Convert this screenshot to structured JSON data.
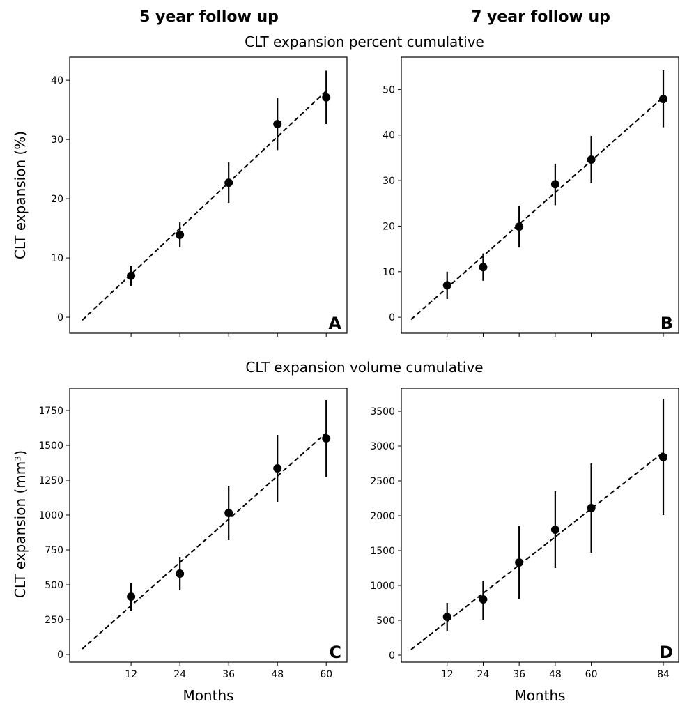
{
  "column_titles": [
    "5 year follow up",
    "7 year follow up"
  ],
  "row_titles": [
    "CLT expansion percent cumulative",
    "CLT expansion volume cumulative"
  ],
  "ylabels": [
    "CLT expansion (%)",
    "CLT expansion (mm³)"
  ],
  "xlabel": "Months",
  "chart_data": [
    {
      "panel": "A",
      "type": "scatter",
      "xlim": [
        -3.1,
        65.1
      ],
      "ylim": [
        -2.7,
        43.9
      ],
      "xticks": [
        12,
        24,
        36,
        48,
        60
      ],
      "yticks": [
        0,
        10,
        20,
        30,
        40
      ],
      "show_xticklabels": false,
      "x": [
        12,
        24,
        36,
        48,
        60
      ],
      "y": [
        7.0,
        13.9,
        22.7,
        32.6,
        37.1
      ],
      "err_low": [
        5.3,
        11.8,
        19.3,
        28.2,
        32.6
      ],
      "err_high": [
        8.7,
        16.0,
        26.2,
        37.0,
        41.6
      ],
      "fit": [
        [
          0,
          -0.5
        ],
        [
          60,
          38.2
        ]
      ]
    },
    {
      "panel": "B",
      "type": "scatter",
      "xlim": [
        -3.25,
        89.1
      ],
      "ylim": [
        -3.5,
        57.1
      ],
      "xticks": [
        12,
        24,
        36,
        48,
        60,
        84
      ],
      "yticks": [
        0,
        10,
        20,
        30,
        40,
        50
      ],
      "show_xticklabels": false,
      "x": [
        12,
        24,
        36,
        48,
        60,
        84
      ],
      "y": [
        7.0,
        11.0,
        19.9,
        29.2,
        34.6,
        47.9
      ],
      "err_low": [
        4.0,
        8.0,
        15.3,
        24.6,
        29.4,
        41.7
      ],
      "err_high": [
        10.0,
        14.0,
        24.5,
        33.7,
        39.8,
        54.2
      ],
      "fit": [
        [
          0,
          -0.5
        ],
        [
          84,
          48.3
        ]
      ]
    },
    {
      "panel": "C",
      "type": "scatter",
      "xlim": [
        -3.1,
        65.1
      ],
      "ylim": [
        -55,
        1910
      ],
      "xticks": [
        12,
        24,
        36,
        48,
        60
      ],
      "yticks": [
        0,
        250,
        500,
        750,
        1000,
        1250,
        1500,
        1750
      ],
      "show_xticklabels": true,
      "x": [
        12,
        24,
        36,
        48,
        60
      ],
      "y": [
        415,
        580,
        1015,
        1335,
        1550
      ],
      "err_low": [
        315,
        460,
        820,
        1095,
        1275
      ],
      "err_high": [
        515,
        700,
        1210,
        1575,
        1825
      ],
      "fit": [
        [
          0,
          40
        ],
        [
          60,
          1590
        ]
      ]
    },
    {
      "panel": "D",
      "type": "scatter",
      "xlim": [
        -3.25,
        89.1
      ],
      "ylim": [
        -100,
        3830
      ],
      "xticks": [
        12,
        24,
        36,
        48,
        60,
        84
      ],
      "yticks": [
        0,
        500,
        1000,
        1500,
        2000,
        2500,
        3000,
        3500
      ],
      "show_xticklabels": true,
      "x": [
        12,
        24,
        36,
        48,
        60,
        84
      ],
      "y": [
        550,
        800,
        1330,
        1800,
        2110,
        2840
      ],
      "err_low": [
        350,
        510,
        810,
        1250,
        1470,
        2010
      ],
      "err_high": [
        750,
        1070,
        1850,
        2350,
        2750,
        3680
      ],
      "fit": [
        [
          0,
          80
        ],
        [
          84,
          2910
        ]
      ]
    }
  ]
}
